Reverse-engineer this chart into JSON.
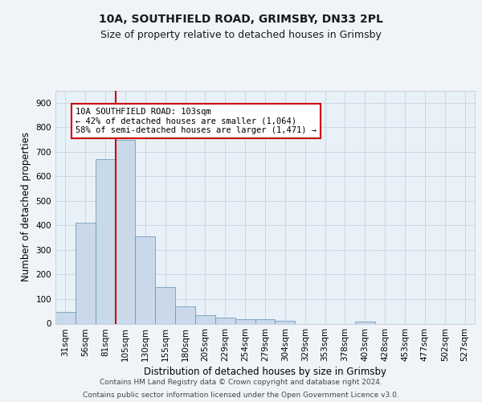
{
  "title1": "10A, SOUTHFIELD ROAD, GRIMSBY, DN33 2PL",
  "title2": "Size of property relative to detached houses in Grimsby",
  "xlabel": "Distribution of detached houses by size in Grimsby",
  "ylabel": "Number of detached properties",
  "categories": [
    "31sqm",
    "56sqm",
    "81sqm",
    "105sqm",
    "130sqm",
    "155sqm",
    "180sqm",
    "205sqm",
    "229sqm",
    "254sqm",
    "279sqm",
    "304sqm",
    "329sqm",
    "353sqm",
    "378sqm",
    "403sqm",
    "428sqm",
    "453sqm",
    "477sqm",
    "502sqm",
    "527sqm"
  ],
  "values": [
    47,
    410,
    670,
    750,
    355,
    148,
    70,
    35,
    26,
    17,
    17,
    10,
    0,
    0,
    0,
    8,
    0,
    0,
    0,
    0,
    0
  ],
  "bar_color": "#c9d9ea",
  "bar_edge_color": "#6090b0",
  "vline_index": 3,
  "vline_color": "#cc0000",
  "annotation_line1": "10A SOUTHFIELD ROAD: 103sqm",
  "annotation_line2": "← 42% of detached houses are smaller (1,064)",
  "annotation_line3": "58% of semi-detached houses are larger (1,471) →",
  "annotation_box_color": "#ffffff",
  "annotation_box_edge_color": "#cc0000",
  "ylim": [
    0,
    950
  ],
  "yticks": [
    0,
    100,
    200,
    300,
    400,
    500,
    600,
    700,
    800,
    900
  ],
  "footer1": "Contains HM Land Registry data © Crown copyright and database right 2024.",
  "footer2": "Contains public sector information licensed under the Open Government Licence v3.0.",
  "bg_color": "#f0f4f8",
  "plot_bg_color": "#e8f0f8",
  "grid_color": "#c8d4e0",
  "title1_fontsize": 10,
  "title2_fontsize": 9,
  "xlabel_fontsize": 8.5,
  "ylabel_fontsize": 8.5,
  "tick_fontsize": 7.5,
  "annotation_fontsize": 7.5,
  "footer_fontsize": 6.5
}
